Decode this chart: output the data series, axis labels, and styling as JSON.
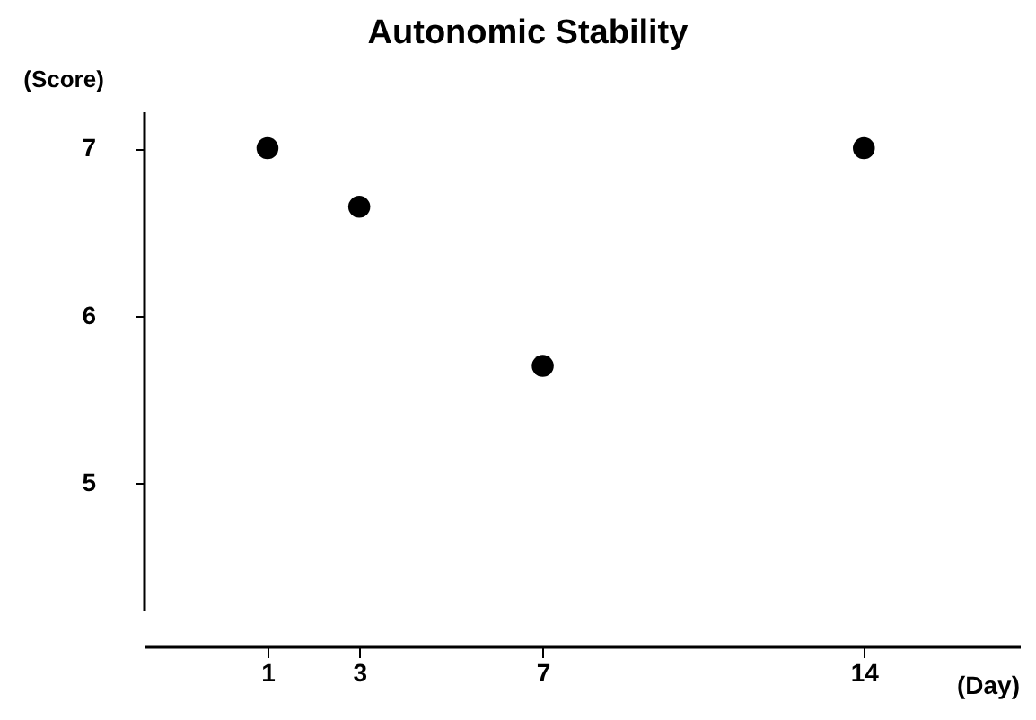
{
  "chart_data": {
    "type": "scatter",
    "title": "Autonomic Stability",
    "xlabel": "(Day)",
    "ylabel": "(Score)",
    "x": [
      1,
      3,
      7,
      14
    ],
    "series": [
      {
        "color": "#000000",
        "values": [
          7,
          6.65,
          5.7,
          7
        ]
      }
    ],
    "xlim": [
      -1.7,
      17.4
    ],
    "ylim": [
      4.24,
      7.22
    ],
    "xticks": [
      1,
      3,
      7,
      14
    ],
    "yticks": [
      5,
      6,
      7
    ],
    "grid": false,
    "marker": "circle"
  }
}
